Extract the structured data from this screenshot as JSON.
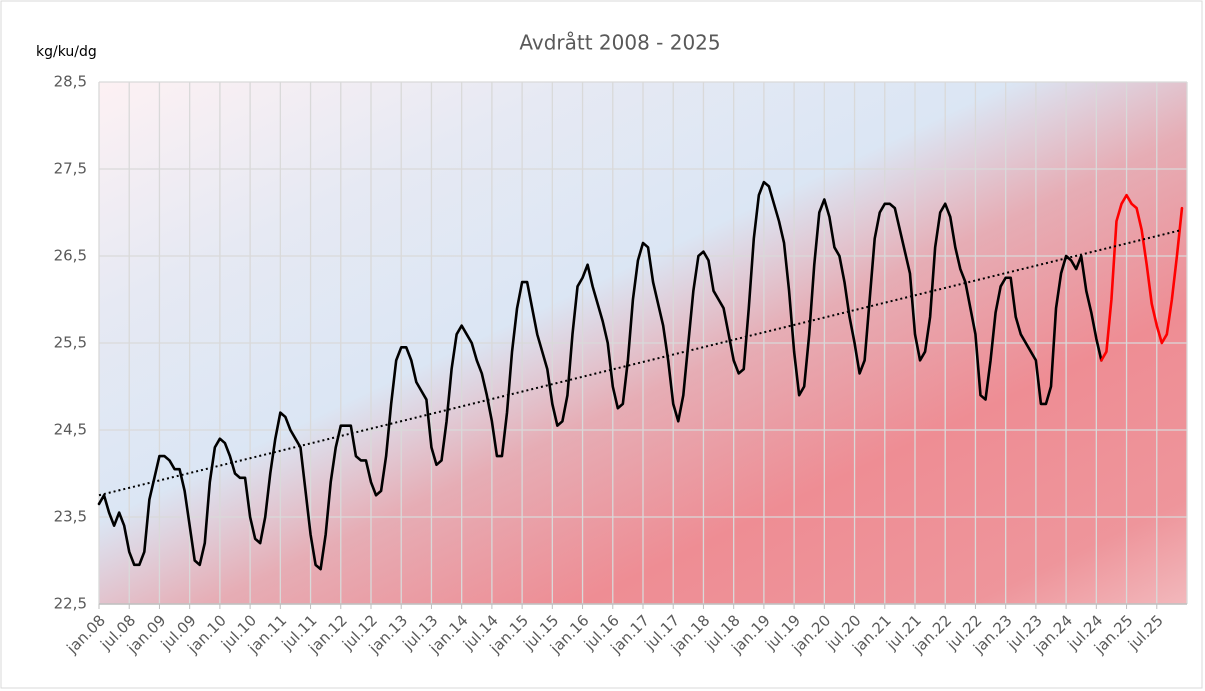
{
  "chart_data": {
    "type": "line",
    "title": "Avdrått 2008 - 2025",
    "y_label": "kg/ku/dg",
    "categories": [
      "jan.08",
      null,
      null,
      null,
      null,
      null,
      "jul.08",
      null,
      null,
      null,
      null,
      null,
      "jan.09",
      null,
      null,
      null,
      null,
      null,
      "jul.09",
      null,
      null,
      null,
      null,
      null,
      "jan.10",
      null,
      null,
      null,
      null,
      null,
      "jul.10",
      null,
      null,
      null,
      null,
      null,
      "jan.11",
      null,
      null,
      null,
      null,
      null,
      "jul.11",
      null,
      null,
      null,
      null,
      null,
      "jan.12",
      null,
      null,
      null,
      null,
      null,
      "jul.12",
      null,
      null,
      null,
      null,
      null,
      "jan.13",
      null,
      null,
      null,
      null,
      null,
      "jul.13",
      null,
      null,
      null,
      null,
      null,
      "jan.14",
      null,
      null,
      null,
      null,
      null,
      "jul.14",
      null,
      null,
      null,
      null,
      null,
      "jan.15",
      null,
      null,
      null,
      null,
      null,
      "jul.15",
      null,
      null,
      null,
      null,
      null,
      "jan.16",
      null,
      null,
      null,
      null,
      null,
      "jul.16",
      null,
      null,
      null,
      null,
      null,
      "jan.17",
      null,
      null,
      null,
      null,
      null,
      "jul.17",
      null,
      null,
      null,
      null,
      null,
      "jan.18",
      null,
      null,
      null,
      null,
      null,
      "jul.18",
      null,
      null,
      null,
      null,
      null,
      "jan.19",
      null,
      null,
      null,
      null,
      null,
      "jul.19",
      null,
      null,
      null,
      null,
      null,
      "jan.20",
      null,
      null,
      null,
      null,
      null,
      "jul.20",
      null,
      null,
      null,
      null,
      null,
      "jan.21",
      null,
      null,
      null,
      null,
      null,
      "jul.21",
      null,
      null,
      null,
      null,
      null,
      "jan.22",
      null,
      null,
      null,
      null,
      null,
      "jul.22",
      null,
      null,
      null,
      null,
      null,
      "jan.23",
      null,
      null,
      null,
      null,
      null,
      "jul.23",
      null,
      null,
      null,
      null,
      null,
      "jan.24",
      null,
      null,
      null,
      null,
      null,
      "jul.24",
      null,
      null,
      null,
      null,
      null,
      "jan.25",
      null,
      null,
      null,
      null,
      null,
      "jul.25",
      null,
      null,
      null,
      null,
      null
    ],
    "series": [
      {
        "color": "#000000",
        "values": [
          23.65,
          23.75,
          23.55,
          23.4,
          23.55,
          23.4,
          23.1,
          22.95,
          22.95,
          23.1,
          23.7,
          23.95,
          24.2,
          24.2,
          24.15,
          24.05,
          24.05,
          23.8,
          23.4,
          23.0,
          22.95,
          23.2,
          23.9,
          24.3,
          24.4,
          24.35,
          24.2,
          24.0,
          23.95,
          23.95,
          23.5,
          23.25,
          23.2,
          23.5,
          24.0,
          24.4,
          24.7,
          24.65,
          24.5,
          24.4,
          24.3,
          23.8,
          23.3,
          22.95,
          22.9,
          23.3,
          23.9,
          24.3,
          24.55,
          24.55,
          24.55,
          24.2,
          24.15,
          24.15,
          23.9,
          23.75,
          23.8,
          24.2,
          24.8,
          25.3,
          25.45,
          25.45,
          25.3,
          25.05,
          24.95,
          24.85,
          24.3,
          24.1,
          24.15,
          24.6,
          25.2,
          25.6,
          25.7,
          25.6,
          25.5,
          25.3,
          25.15,
          24.9,
          24.6,
          24.2,
          24.2,
          24.7,
          25.4,
          25.9,
          26.2,
          26.2,
          25.9,
          25.6,
          25.4,
          25.2,
          24.8,
          24.55,
          24.6,
          24.9,
          25.6,
          26.15,
          26.25,
          26.4,
          26.15,
          25.95,
          25.75,
          25.5,
          25.0,
          24.75,
          24.8,
          25.3,
          26.0,
          26.45,
          26.65,
          26.6,
          26.2,
          25.95,
          25.7,
          25.3,
          24.8,
          24.6,
          24.9,
          25.5,
          26.1,
          26.5,
          26.55,
          26.45,
          26.1,
          26.0,
          25.9,
          25.6,
          25.3,
          25.15,
          25.2,
          25.9,
          26.7,
          27.2,
          27.35,
          27.3,
          27.1,
          26.9,
          26.65,
          26.1,
          25.4,
          24.9,
          25.0,
          25.6,
          26.4,
          27.0,
          27.15,
          26.95,
          26.6,
          26.5,
          26.2,
          25.8,
          25.5,
          25.15,
          25.3,
          26.0,
          26.7,
          27.0,
          27.1,
          27.1,
          27.05,
          26.8,
          26.55,
          26.3,
          25.6,
          25.3,
          25.4,
          25.8,
          26.6,
          27.0,
          27.1,
          26.95,
          26.6,
          26.35,
          26.2,
          25.9,
          25.6,
          24.9,
          24.85,
          25.3,
          25.85,
          26.15,
          26.25,
          26.25,
          25.8,
          25.6,
          25.5,
          25.4,
          25.3,
          24.8,
          24.8,
          25.0,
          25.9,
          26.3,
          26.5,
          26.45,
          26.35,
          26.5,
          26.1,
          25.85,
          25.55,
          25.3,
          null,
          null,
          null,
          null,
          null,
          null,
          null,
          null,
          null,
          null,
          null,
          null,
          null,
          null,
          null,
          null
        ]
      },
      {
        "color": "#ff0000",
        "values": [
          null,
          null,
          null,
          null,
          null,
          null,
          null,
          null,
          null,
          null,
          null,
          null,
          null,
          null,
          null,
          null,
          null,
          null,
          null,
          null,
          null,
          null,
          null,
          null,
          null,
          null,
          null,
          null,
          null,
          null,
          null,
          null,
          null,
          null,
          null,
          null,
          null,
          null,
          null,
          null,
          null,
          null,
          null,
          null,
          null,
          null,
          null,
          null,
          null,
          null,
          null,
          null,
          null,
          null,
          null,
          null,
          null,
          null,
          null,
          null,
          null,
          null,
          null,
          null,
          null,
          null,
          null,
          null,
          null,
          null,
          null,
          null,
          null,
          null,
          null,
          null,
          null,
          null,
          null,
          null,
          null,
          null,
          null,
          null,
          null,
          null,
          null,
          null,
          null,
          null,
          null,
          null,
          null,
          null,
          null,
          null,
          null,
          null,
          null,
          null,
          null,
          null,
          null,
          null,
          null,
          null,
          null,
          null,
          null,
          null,
          null,
          null,
          null,
          null,
          null,
          null,
          null,
          null,
          null,
          null,
          null,
          null,
          null,
          null,
          null,
          null,
          null,
          null,
          null,
          null,
          null,
          null,
          null,
          null,
          null,
          null,
          null,
          null,
          null,
          null,
          null,
          null,
          null,
          null,
          null,
          null,
          null,
          null,
          null,
          null,
          null,
          null,
          null,
          null,
          null,
          null,
          null,
          null,
          null,
          null,
          null,
          null,
          null,
          null,
          null,
          null,
          null,
          null,
          null,
          null,
          null,
          null,
          null,
          null,
          null,
          null,
          null,
          null,
          null,
          null,
          null,
          null,
          null,
          null,
          null,
          null,
          null,
          null,
          null,
          null,
          null,
          null,
          null,
          null,
          null,
          null,
          null,
          null,
          null,
          25.3,
          25.4,
          26.0,
          26.9,
          27.1,
          27.2,
          27.1,
          27.05,
          26.8,
          26.4,
          25.95,
          25.7,
          25.5,
          25.6,
          26.0,
          26.5,
          27.05
        ]
      }
    ],
    "trendline": {
      "start": 23.75,
      "end": 26.8,
      "color": "#000000"
    },
    "ylim": [
      22.5,
      28.5
    ],
    "yticks": [
      {
        "value": 22.5,
        "label": "22,5"
      },
      {
        "value": 23.5,
        "label": "23,5"
      },
      {
        "value": 24.5,
        "label": "24,5"
      },
      {
        "value": 25.5,
        "label": "25,5"
      },
      {
        "value": 26.5,
        "label": "26,5"
      },
      {
        "value": 27.5,
        "label": "27,5"
      },
      {
        "value": 28.5,
        "label": "28,5"
      }
    ],
    "grid": true
  }
}
